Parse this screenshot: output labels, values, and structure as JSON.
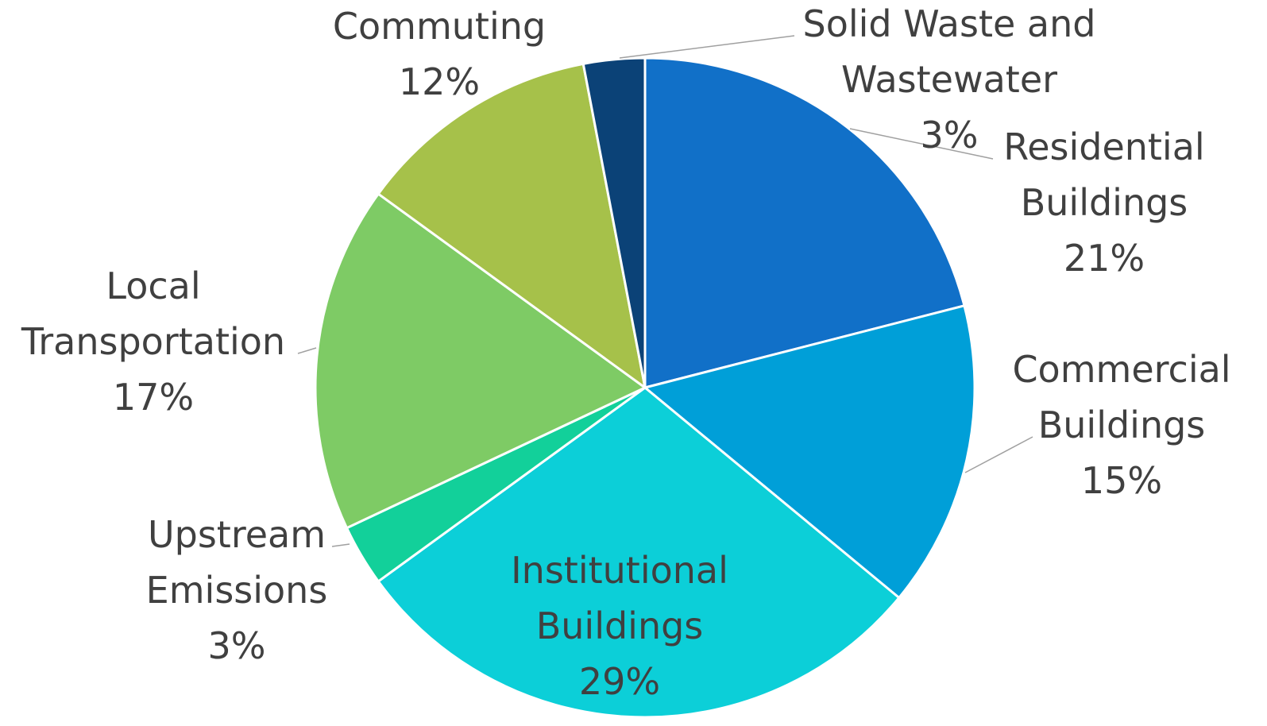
{
  "chart_data": {
    "type": "pie",
    "categories": [
      "Residential Buildings",
      "Commercial Buildings",
      "Institutional Buildings",
      "Upstream Emissions",
      "Local Transportation",
      "Commuting",
      "Solid Waste and Wastewater"
    ],
    "values": [
      21,
      15,
      29,
      3,
      17,
      12,
      3
    ],
    "value_labels": [
      "21%",
      "15%",
      "29%",
      "3%",
      "17%",
      "12%",
      "3%"
    ],
    "colors": [
      "#1170c8",
      "#009fd8",
      "#0ccfd8",
      "#12d09a",
      "#7ecb65",
      "#a6c14a",
      "#0b4277"
    ]
  }
}
